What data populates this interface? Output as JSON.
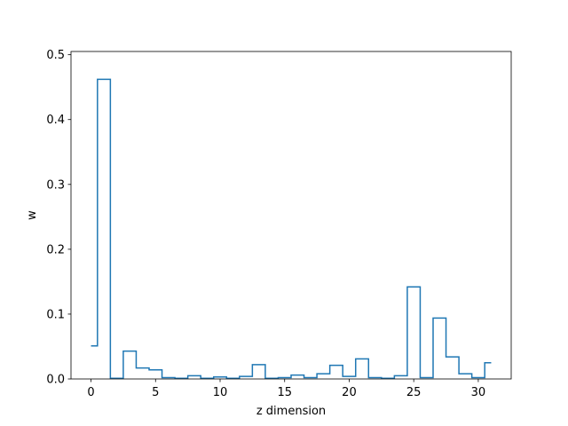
{
  "chart_data": {
    "type": "line",
    "drawstyle": "steps-mid",
    "title": "",
    "xlabel": "z dimension",
    "ylabel": "w",
    "xlim": [
      -1.55,
      32.55
    ],
    "ylim": [
      0,
      0.505
    ],
    "xticks": [
      0,
      5,
      10,
      15,
      20,
      25,
      30
    ],
    "yticks": [
      0.0,
      0.1,
      0.2,
      0.3,
      0.4,
      0.5
    ],
    "ytick_labels": [
      "0.0",
      "0.1",
      "0.2",
      "0.3",
      "0.4",
      "0.5"
    ],
    "grid": false,
    "legend": null,
    "series": [
      {
        "color": "#1f77b4",
        "x": [
          0,
          1,
          2,
          3,
          4,
          5,
          6,
          7,
          8,
          9,
          10,
          11,
          12,
          13,
          14,
          15,
          16,
          17,
          18,
          19,
          20,
          21,
          22,
          23,
          24,
          25,
          26,
          27,
          28,
          29,
          30,
          31
        ],
        "values": [
          0.051,
          0.462,
          0.001,
          0.043,
          0.017,
          0.014,
          0.002,
          0.001,
          0.005,
          0.001,
          0.003,
          0.001,
          0.004,
          0.022,
          0.001,
          0.002,
          0.006,
          0.002,
          0.008,
          0.021,
          0.004,
          0.031,
          0.002,
          0.001,
          0.005,
          0.142,
          0.002,
          0.094,
          0.034,
          0.008,
          0.002,
          0.025
        ]
      }
    ]
  }
}
